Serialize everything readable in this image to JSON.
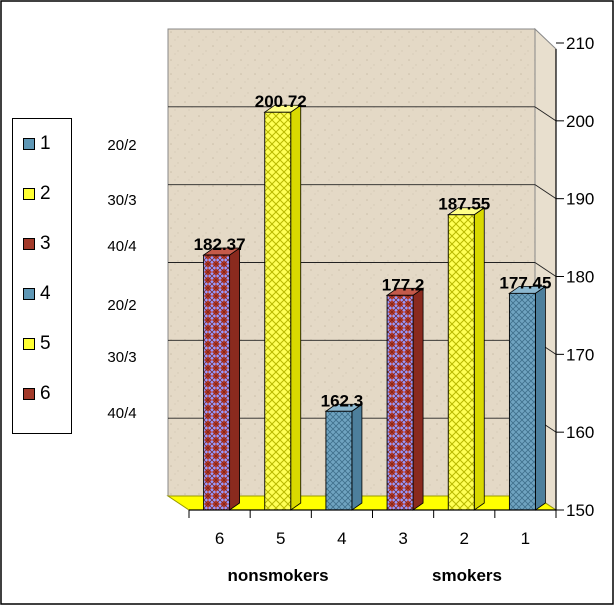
{
  "chart_data": {
    "type": "bar",
    "categories": [
      "6",
      "5",
      "4",
      "3",
      "2",
      "1"
    ],
    "values": [
      182.37,
      200.72,
      162.3,
      177.2,
      187.55,
      177.45
    ],
    "data_labels": [
      "182.37",
      "200.72",
      "162.3",
      "177.2",
      "187.55",
      "177.45"
    ],
    "group_labels": [
      "nonsmokers",
      "smokers"
    ],
    "ylim": [
      150,
      210
    ],
    "y_ticks": [
      "150",
      "160",
      "170",
      "180",
      "190",
      "200",
      "210"
    ],
    "legend": [
      "1",
      "2",
      "3",
      "4",
      "5",
      "6"
    ],
    "side_notes": [
      "20/2",
      "30/3",
      "40/4",
      "20/2",
      "30/3",
      "40/4"
    ],
    "legend_position": "left",
    "grid": true,
    "style": "3d"
  },
  "colors": {
    "blue": "#5f97b5",
    "yellow": "#ffff33",
    "red": "#a23a2a",
    "floor": "#ffff00",
    "wall": "#e6dccb"
  },
  "bar_colors": [
    "red",
    "yellow",
    "blue",
    "red",
    "yellow",
    "blue"
  ],
  "legend_colors": [
    "blue",
    "yellow",
    "red",
    "blue",
    "yellow",
    "red"
  ]
}
